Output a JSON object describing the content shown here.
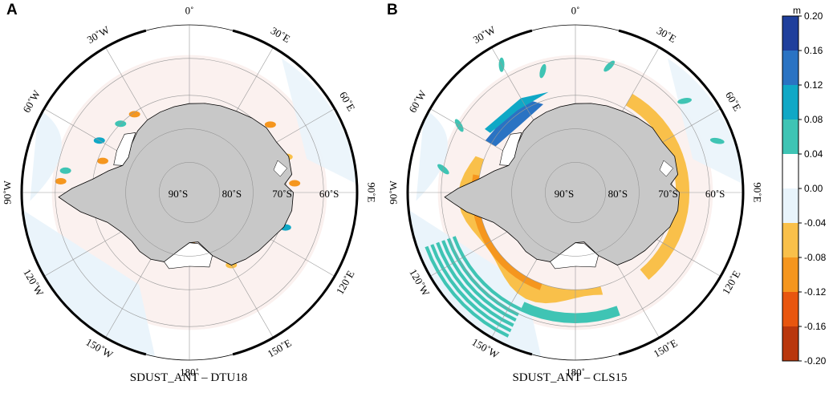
{
  "panels": [
    {
      "letter": "A",
      "caption": "SDUST_ANT – DTU18",
      "lon_labels": [
        "0˚",
        "30˚E",
        "60˚E",
        "90˚E",
        "120˚E",
        "150˚E",
        "180˚",
        "150˚W",
        "120˚W",
        "90˚W",
        "60˚W",
        "30˚W"
      ],
      "lat_labels": [
        "90˚S",
        "80˚S",
        "70˚S",
        "60˚S"
      ]
    },
    {
      "letter": "B",
      "caption": "SDUST_ANT – CLS15",
      "lon_labels": [
        "0˚",
        "30˚E",
        "60˚E",
        "90˚E",
        "120˚E",
        "150˚E",
        "180˚",
        "150˚W",
        "120˚W",
        "90˚W",
        "60˚W",
        "30˚W"
      ],
      "lat_labels": [
        "90˚S",
        "80˚S",
        "70˚S",
        "60˚S"
      ]
    }
  ],
  "colorbar": {
    "unit": "m",
    "ticks": [
      "0.20",
      "0.16",
      "0.12",
      "0.08",
      "0.04",
      "0.00",
      "-0.04",
      "-0.08",
      "-0.12",
      "-0.16",
      "-0.20"
    ],
    "colors": [
      "#1f3f9c",
      "#2a73c3",
      "#10a8c6",
      "#3fc4b4",
      "#ffffff",
      "#e8f4fb",
      "#f9c04a",
      "#f5961e",
      "#e8560f",
      "#b9370d"
    ]
  },
  "colors": {
    "land": "#c8c8c8",
    "ice_shelf": "#ffffff",
    "ocean_neutral": "#eaf4fb",
    "ocean_pink": "#fbf1ef",
    "grid": "#999999"
  }
}
